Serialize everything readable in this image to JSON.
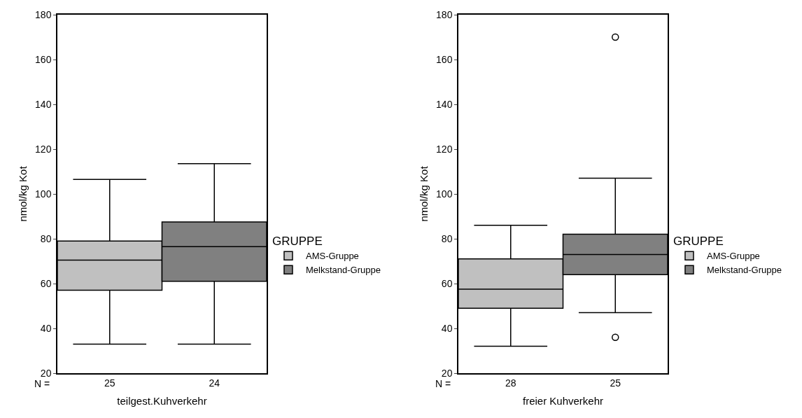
{
  "chart_data": [
    {
      "type": "box",
      "categories": [
        "25",
        "24"
      ],
      "xlabel": "teilgest.Kuhverkehr",
      "ylabel": "nmol/kg Kot",
      "legend_title": "GRUPPE",
      "legend": "right",
      "grid": false,
      "annotations": [
        "N ="
      ],
      "ylim": [
        20,
        180
      ],
      "yticks": [
        20,
        40,
        60,
        80,
        100,
        120,
        140,
        160,
        180
      ],
      "series": [
        {
          "name": "AMS-Gruppe",
          "color": "#c0c0c0",
          "boxes": [
            {
              "low": 33,
              "q1": 57,
              "median": 70.5,
              "q3": 79,
              "high": 106.5
            },
            null
          ]
        },
        {
          "name": "Melkstand-Gruppe",
          "color": "#808080",
          "boxes": [
            null,
            {
              "low": 33,
              "q1": 61,
              "median": 76.5,
              "q3": 87.5,
              "high": 113.5
            }
          ]
        }
      ]
    },
    {
      "type": "box",
      "categories": [
        "28",
        "25"
      ],
      "xlabel": "freier Kuhverkehr",
      "ylabel": "nmol/kg Kot",
      "legend_title": "GRUPPE",
      "legend": "right",
      "grid": false,
      "annotations": [
        "N ="
      ],
      "ylim": [
        20,
        180
      ],
      "yticks": [
        20,
        40,
        60,
        80,
        100,
        120,
        140,
        160,
        180
      ],
      "series": [
        {
          "name": "AMS-Gruppe",
          "color": "#c0c0c0",
          "boxes": [
            {
              "low": 32,
              "q1": 49,
              "median": 57.5,
              "q3": 71,
              "high": 86
            },
            null
          ]
        },
        {
          "name": "Melkstand-Gruppe",
          "color": "#808080",
          "boxes": [
            null,
            {
              "low": 47,
              "q1": 64,
              "median": 73,
              "q3": 82,
              "high": 107,
              "outliers": [
                36,
                170
              ]
            }
          ]
        }
      ]
    }
  ]
}
